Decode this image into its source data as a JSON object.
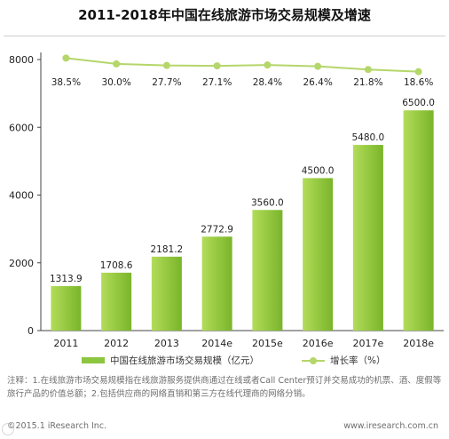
{
  "page": {
    "title": "2011-2018年中国在线旅游市场交易规模及增速"
  },
  "chart_data": {
    "type": "bar",
    "categories": [
      "2011",
      "2012",
      "2013",
      "2014e",
      "2015e",
      "2016e",
      "2017e",
      "2018e"
    ],
    "series": [
      {
        "name": "中国在线旅游市场交易规模（亿元）",
        "type": "bar",
        "values": [
          1313.9,
          1708.6,
          2181.2,
          2772.9,
          3560.0,
          4500.0,
          5480.0,
          6500.0
        ],
        "labels": [
          "1313.9",
          "1708.6",
          "2181.2",
          "2772.9",
          "3560.0",
          "4500.0",
          "5480.0",
          "6500.0"
        ]
      },
      {
        "name": "增长率（%）",
        "type": "line",
        "values": [
          38.5,
          30.0,
          27.7,
          27.1,
          28.4,
          26.4,
          21.8,
          18.6
        ],
        "labels": [
          "38.5%",
          "30.0%",
          "27.7%",
          "27.1%",
          "28.4%",
          "26.4%",
          "21.8%",
          "18.6%"
        ]
      }
    ],
    "yticks": [
      "0",
      "2000",
      "4000",
      "6000",
      "8000"
    ],
    "ylim": [
      0,
      8000
    ],
    "legend_position": "bottom",
    "grid": false,
    "colors": {
      "bar_light": "#a8d64e",
      "bar_dark": "#6fae1c",
      "line": "#b5d66a",
      "marker": "#b5d66a"
    }
  },
  "note": "注释：1.在线旅游市场交易规模指在线旅游服务提供商通过在线或者Call Center预订并交易成功的机票、酒、度假等旅行产品的价值总额；2.包括供应商的网络直销和第三方在线代理商的网络分销。",
  "footer": {
    "left": "©2015.1 iResearch Inc.",
    "right": "www.iresearch.com.cn"
  }
}
